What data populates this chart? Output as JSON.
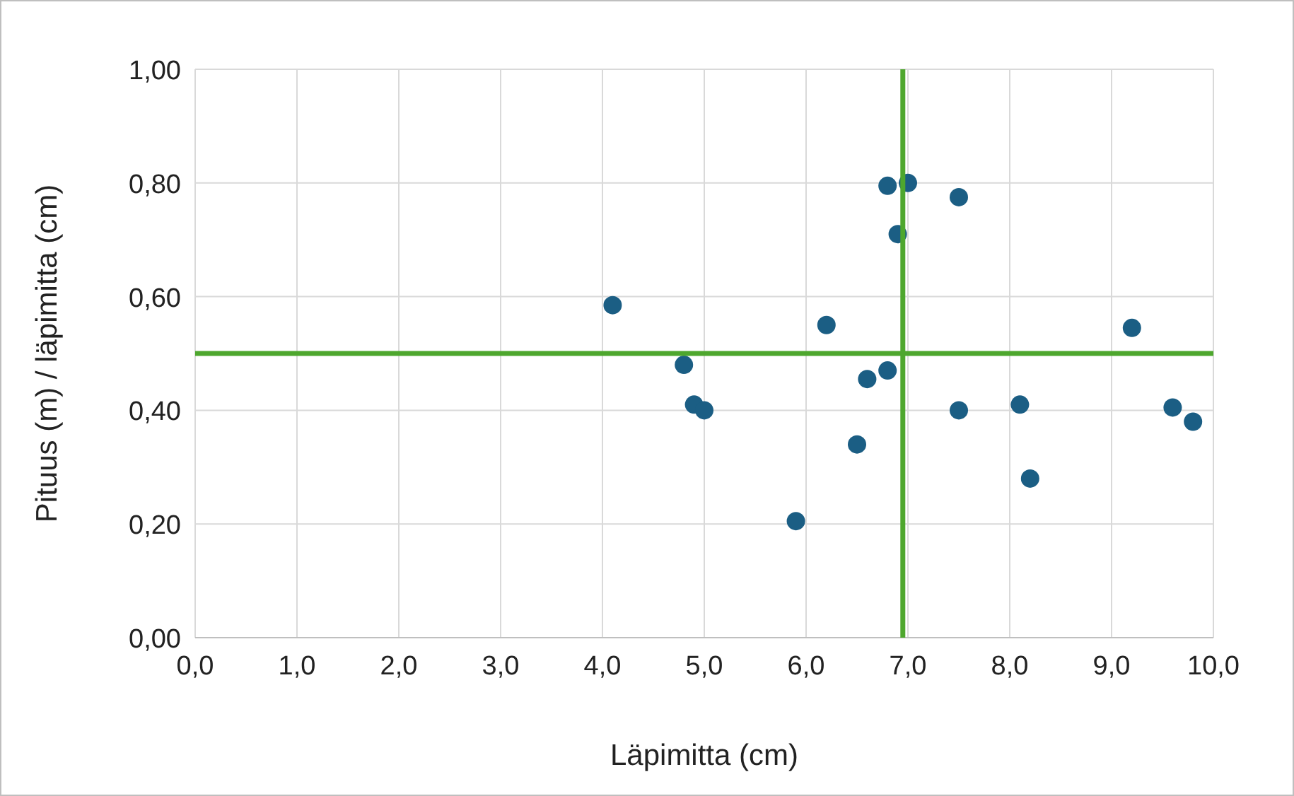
{
  "chart_data": {
    "type": "scatter",
    "xlabel": "Läpimitta (cm)",
    "ylabel": "Pituus (m) / läpimitta (cm)",
    "x": [
      4.1,
      4.8,
      4.9,
      5.0,
      5.9,
      6.2,
      6.5,
      6.6,
      6.8,
      6.8,
      6.9,
      7.0,
      7.5,
      7.5,
      8.1,
      8.2,
      9.2,
      9.6,
      9.8
    ],
    "series": [
      {
        "color": "#1b5e84",
        "values": [
          0.585,
          0.48,
          0.41,
          0.4,
          0.205,
          0.55,
          0.34,
          0.455,
          0.47,
          0.795,
          0.71,
          0.8,
          0.775,
          0.4,
          0.41,
          0.28,
          0.545,
          0.405,
          0.38
        ]
      }
    ],
    "xlim": [
      0,
      10
    ],
    "ylim": [
      0,
      1
    ],
    "xticks": [
      {
        "value": 0,
        "label": "0,0"
      },
      {
        "value": 1,
        "label": "1,0"
      },
      {
        "value": 2,
        "label": "2,0"
      },
      {
        "value": 3,
        "label": "3,0"
      },
      {
        "value": 4,
        "label": "4,0"
      },
      {
        "value": 5,
        "label": "5,0"
      },
      {
        "value": 6,
        "label": "6,0"
      },
      {
        "value": 7,
        "label": "7,0"
      },
      {
        "value": 8,
        "label": "8,0"
      },
      {
        "value": 9,
        "label": "9,0"
      },
      {
        "value": 10,
        "label": "10,0"
      }
    ],
    "yticks": [
      {
        "value": 0,
        "label": "0,00"
      },
      {
        "value": 0.2,
        "label": "0,20"
      },
      {
        "value": 0.4,
        "label": "0,40"
      },
      {
        "value": 0.6,
        "label": "0,60"
      },
      {
        "value": 0.8,
        "label": "0,80"
      },
      {
        "value": 1,
        "label": "1,00"
      }
    ],
    "ref_lines": [
      {
        "axis": "x",
        "value": 6.95,
        "color": "#4ea72e"
      },
      {
        "axis": "y",
        "value": 0.5,
        "color": "#4ea72e"
      }
    ],
    "grid": true,
    "marker": "circle"
  }
}
